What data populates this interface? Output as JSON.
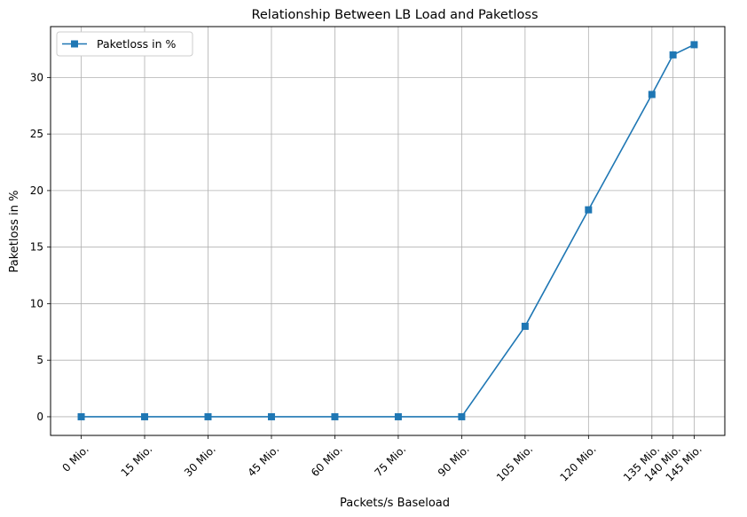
{
  "chart_data": {
    "type": "line",
    "title": "Relationship Between LB Load and Paketloss",
    "xlabel": "Packets/s Baseload",
    "ylabel": "Paketloss in %",
    "x": [
      0,
      15,
      30,
      45,
      60,
      75,
      90,
      105,
      120,
      135,
      140,
      145
    ],
    "x_tick_labels": [
      "0 Mio.",
      "15 Mio.",
      "30 Mio.",
      "45 Mio.",
      "60 Mio.",
      "75 Mio.",
      "90 Mio.",
      "105 Mio.",
      "120 Mio.",
      "135 Mio.",
      "140 Mio.",
      "145 Mio."
    ],
    "y_ticks": [
      0,
      5,
      10,
      15,
      20,
      25,
      30
    ],
    "xlim": [
      -7.25,
      152.25
    ],
    "ylim": [
      -1.65,
      34.5
    ],
    "series": [
      {
        "name": "Paketloss in %",
        "marker": "square",
        "color": "#1f77b4",
        "values": [
          0,
          0,
          0,
          0,
          0,
          0,
          0,
          8.0,
          18.3,
          28.5,
          32.0,
          32.9
        ]
      }
    ],
    "grid": true,
    "legend_position": "top-left"
  }
}
